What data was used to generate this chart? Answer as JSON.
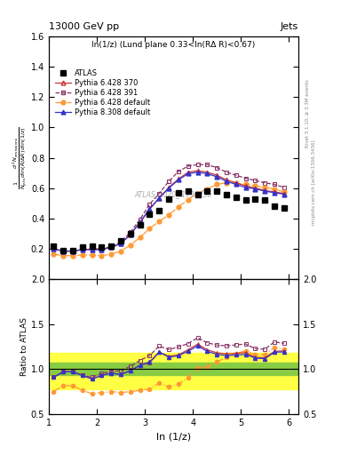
{
  "title_left": "13000 GeV pp",
  "title_right": "Jets",
  "plot_title": "ln(1/z) (Lund plane 0.33<ln(RΔ R)<0.67)",
  "ylabel_ratio": "Ratio to ATLAS",
  "xlabel": "ln (1/z)",
  "right_label_top": "Rivet 3.1.10, ≥ 3.3M events",
  "right_label_bottom": "mcplots.cern.ch [arXiv:1306.3436]",
  "watermark": "ATLAS_2020_I1790256",
  "xlim": [
    1.0,
    6.2
  ],
  "ylim_main": [
    0.0,
    1.6
  ],
  "ylim_ratio": [
    0.5,
    2.0
  ],
  "yticks_main": [
    0.2,
    0.4,
    0.6,
    0.8,
    1.0,
    1.2,
    1.4,
    1.6
  ],
  "yticks_ratio": [
    0.5,
    1.0,
    1.5,
    2.0
  ],
  "xticks": [
    1,
    2,
    3,
    4,
    5,
    6
  ],
  "x_atlas": [
    1.1,
    1.3,
    1.5,
    1.7,
    1.9,
    2.1,
    2.3,
    2.5,
    2.7,
    2.9,
    3.1,
    3.3,
    3.5,
    3.7,
    3.9,
    4.1,
    4.3,
    4.5,
    4.7,
    4.9,
    5.1,
    5.3,
    5.5,
    5.7,
    5.9
  ],
  "y_atlas": [
    0.22,
    0.19,
    0.19,
    0.21,
    0.22,
    0.21,
    0.22,
    0.25,
    0.3,
    0.36,
    0.43,
    0.45,
    0.53,
    0.57,
    0.58,
    0.56,
    0.58,
    0.58,
    0.56,
    0.54,
    0.52,
    0.53,
    0.52,
    0.48,
    0.47
  ],
  "x_py6_370": [
    1.1,
    1.3,
    1.5,
    1.7,
    1.9,
    2.1,
    2.3,
    2.5,
    2.7,
    2.9,
    3.1,
    3.3,
    3.5,
    3.7,
    3.9,
    4.1,
    4.3,
    4.5,
    4.7,
    4.9,
    5.1,
    5.3,
    5.5,
    5.7,
    5.9
  ],
  "y_py6_370": [
    0.2,
    0.185,
    0.185,
    0.195,
    0.195,
    0.195,
    0.21,
    0.235,
    0.295,
    0.375,
    0.46,
    0.535,
    0.605,
    0.66,
    0.705,
    0.715,
    0.705,
    0.685,
    0.655,
    0.635,
    0.615,
    0.6,
    0.585,
    0.575,
    0.565
  ],
  "x_py6_391": [
    1.1,
    1.3,
    1.5,
    1.7,
    1.9,
    2.1,
    2.3,
    2.5,
    2.7,
    2.9,
    3.1,
    3.3,
    3.5,
    3.7,
    3.9,
    4.1,
    4.3,
    4.5,
    4.7,
    4.9,
    5.1,
    5.3,
    5.5,
    5.7,
    5.9
  ],
  "y_py6_391": [
    0.2,
    0.185,
    0.185,
    0.195,
    0.2,
    0.2,
    0.215,
    0.245,
    0.31,
    0.395,
    0.495,
    0.565,
    0.645,
    0.71,
    0.745,
    0.755,
    0.755,
    0.735,
    0.705,
    0.685,
    0.665,
    0.65,
    0.635,
    0.625,
    0.605
  ],
  "x_py6_def": [
    1.1,
    1.3,
    1.5,
    1.7,
    1.9,
    2.1,
    2.3,
    2.5,
    2.7,
    2.9,
    3.1,
    3.3,
    3.5,
    3.7,
    3.9,
    4.1,
    4.3,
    4.5,
    4.7,
    4.9,
    5.1,
    5.3,
    5.5,
    5.7,
    5.9
  ],
  "y_py6_def": [
    0.165,
    0.155,
    0.155,
    0.16,
    0.16,
    0.155,
    0.165,
    0.185,
    0.225,
    0.275,
    0.335,
    0.38,
    0.425,
    0.475,
    0.525,
    0.565,
    0.595,
    0.625,
    0.635,
    0.635,
    0.625,
    0.615,
    0.605,
    0.595,
    0.575
  ],
  "x_py8_def": [
    1.1,
    1.3,
    1.5,
    1.7,
    1.9,
    2.1,
    2.3,
    2.5,
    2.7,
    2.9,
    3.1,
    3.3,
    3.5,
    3.7,
    3.9,
    4.1,
    4.3,
    4.5,
    4.7,
    4.9,
    5.1,
    5.3,
    5.5,
    5.7,
    5.9
  ],
  "y_py8_def": [
    0.2,
    0.185,
    0.185,
    0.195,
    0.195,
    0.195,
    0.21,
    0.235,
    0.295,
    0.375,
    0.465,
    0.535,
    0.6,
    0.655,
    0.695,
    0.705,
    0.695,
    0.675,
    0.645,
    0.625,
    0.605,
    0.595,
    0.58,
    0.57,
    0.56
  ],
  "color_atlas": "#000000",
  "color_py6_370": "#cc3333",
  "color_py6_391": "#883366",
  "color_py6_def": "#ff9933",
  "color_py8_def": "#3333cc",
  "green_band_inner": [
    0.93,
    1.07
  ],
  "yellow_band_outer": [
    0.78,
    1.18
  ],
  "ratio_py6_370": [
    0.91,
    0.97,
    0.97,
    0.93,
    0.89,
    0.93,
    0.955,
    0.94,
    0.983,
    1.042,
    1.07,
    1.189,
    1.142,
    1.158,
    1.215,
    1.277,
    1.215,
    1.181,
    1.17,
    1.176,
    1.183,
    1.132,
    1.125,
    1.198,
    1.202
  ],
  "ratio_py6_391": [
    0.91,
    0.97,
    0.97,
    0.93,
    0.91,
    0.952,
    0.977,
    0.98,
    1.033,
    1.097,
    1.151,
    1.256,
    1.217,
    1.246,
    1.284,
    1.348,
    1.293,
    1.267,
    1.259,
    1.269,
    1.279,
    1.226,
    1.221,
    1.302,
    1.287
  ],
  "ratio_py6_def": [
    0.75,
    0.816,
    0.816,
    0.762,
    0.727,
    0.738,
    0.75,
    0.74,
    0.75,
    0.764,
    0.779,
    0.844,
    0.802,
    0.833,
    0.905,
    1.009,
    1.026,
    1.078,
    1.134,
    1.176,
    1.202,
    1.16,
    1.163,
    1.24,
    1.223
  ],
  "ratio_py8_def": [
    0.91,
    0.97,
    0.97,
    0.93,
    0.89,
    0.93,
    0.955,
    0.94,
    0.983,
    1.042,
    1.081,
    1.189,
    1.132,
    1.149,
    1.198,
    1.259,
    1.198,
    1.164,
    1.152,
    1.157,
    1.163,
    1.123,
    1.115,
    1.188,
    1.191
  ]
}
